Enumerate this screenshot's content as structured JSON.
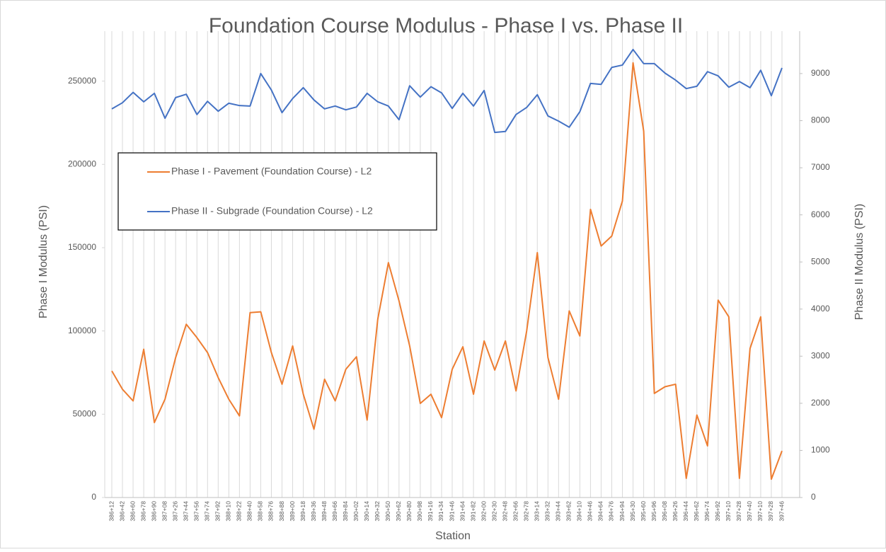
{
  "chart_data": {
    "type": "line",
    "title": "Foundation Course Modulus - Phase I vs. Phase II",
    "x_label": "Station",
    "y_label": "Phase I Modulus (PSI)",
    "y2_label": "Phase II Modulus (PSI)",
    "categories": [
      "386+12",
      "386+42",
      "386+60",
      "386+78",
      "386+90",
      "387+08",
      "387+26",
      "387+44",
      "387+56",
      "387+74",
      "387+92",
      "388+10",
      "388+22",
      "388+40",
      "388+58",
      "388+76",
      "388+88",
      "389+00",
      "389+18",
      "389+36",
      "389+48",
      "389+66",
      "389+84",
      "390+02",
      "390+14",
      "390+32",
      "390+50",
      "390+62",
      "390+80",
      "390+98",
      "391+16",
      "391+34",
      "391+46",
      "391+64",
      "391+82",
      "392+00",
      "392+30",
      "392+48",
      "392+66",
      "392+78",
      "393+14",
      "393+32",
      "393+44",
      "393+62",
      "394+10",
      "394+46",
      "394+64",
      "394+76",
      "394+94",
      "395+30",
      "395+60",
      "395+96",
      "396+08",
      "396+26",
      "396+44",
      "396+62",
      "396+74",
      "396+92",
      "397+10",
      "397+28",
      "397+40",
      "397+10",
      "397+28",
      "397+46"
    ],
    "series": [
      {
        "name": "Phase I - Pavement (Foundation Course) - L2",
        "color": "#ed7d31",
        "values": [
          76000,
          65000,
          58000,
          89000,
          45000,
          59000,
          84000,
          104000,
          96000,
          87000,
          72000,
          59000,
          49000,
          111000,
          111500,
          87000,
          68000,
          91000,
          62000,
          41000,
          71000,
          58000,
          77000,
          84500,
          46500,
          107000,
          141000,
          118000,
          91000,
          56500,
          62000,
          48000,
          77000,
          90500,
          62000,
          94000,
          76500,
          94000,
          64000,
          100000,
          147000,
          84000,
          59000,
          112000,
          97000,
          173000,
          151000,
          157000,
          178000,
          261000,
          220000,
          62500,
          66500,
          68000,
          11500,
          49500,
          31000,
          118500,
          108500,
          11500,
          89500,
          108500,
          11000,
          28000
        ]
      },
      {
        "name": "Phase II - Subgrade (Foundation Course) - L2",
        "color": "#4472c4",
        "axis": "y2",
        "values": [
          8250,
          8380,
          8600,
          8400,
          8580,
          8050,
          8490,
          8560,
          8130,
          8410,
          8200,
          8370,
          8320,
          8310,
          9000,
          8650,
          8170,
          8470,
          8700,
          8440,
          8250,
          8310,
          8230,
          8290,
          8580,
          8400,
          8310,
          8020,
          8740,
          8500,
          8720,
          8590,
          8260,
          8580,
          8310,
          8640,
          7750,
          7770,
          8130,
          8280,
          8550,
          8100,
          7990,
          7860,
          8190,
          8790,
          8770,
          9130,
          9180,
          9510,
          9210,
          9210,
          9010,
          8860,
          8680,
          8730,
          9040,
          8950,
          8710,
          8830,
          8700,
          9070,
          8530,
          9120
        ]
      }
    ],
    "ylim": [
      0,
      280000
    ],
    "yticks": [
      0,
      50000,
      100000,
      150000,
      200000,
      250000
    ],
    "y2lim": [
      0,
      9900
    ],
    "y2ticks": [
      0,
      1000,
      2000,
      3000,
      4000,
      5000,
      6000,
      7000,
      8000,
      9000
    ],
    "grid_x": true
  }
}
